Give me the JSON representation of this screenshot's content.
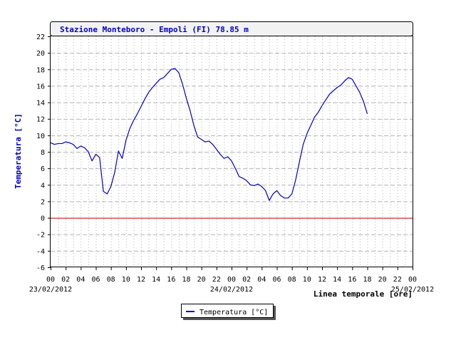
{
  "colors": {
    "series": "#0000cc",
    "zero_line": "#cc0000",
    "grid": "#b4b4b4",
    "axis_text": "#000000",
    "ylabel": "#0000cc",
    "title_bg": "#f2f2f2"
  },
  "chart_data": {
    "type": "line",
    "title": "Stazione Monteboro - Empoli (FI) 78.85 m",
    "ylabel": "Temperatura [°C]",
    "xlabel": "Linea temporale [ore]",
    "ylim": [
      -6,
      22
    ],
    "yticks": [
      -6,
      -4,
      -2,
      0,
      2,
      4,
      6,
      8,
      10,
      12,
      14,
      16,
      18,
      20,
      22
    ],
    "xlim_hours": [
      0,
      48
    ],
    "xtick_labels": [
      "00",
      "02",
      "04",
      "06",
      "08",
      "10",
      "12",
      "14",
      "16",
      "18",
      "20",
      "22",
      "00",
      "02",
      "04",
      "06",
      "08",
      "10",
      "12",
      "14",
      "16",
      "18",
      "20",
      "22",
      "00"
    ],
    "date_labels": [
      {
        "hour": 0,
        "label": "23/02/2012"
      },
      {
        "hour": 24,
        "label": "24/02/2012"
      },
      {
        "hour": 48,
        "label": "25/02/2012"
      }
    ],
    "grid": true,
    "legend": "bottom-center",
    "reference_line": {
      "y": 0
    },
    "series": [
      {
        "name": "Temperatura [°C]",
        "points": [
          [
            0.0,
            9.1
          ],
          [
            0.5,
            8.9
          ],
          [
            1.0,
            9.0
          ],
          [
            1.5,
            9.0
          ],
          [
            2.0,
            9.2
          ],
          [
            2.5,
            9.1
          ],
          [
            3.0,
            8.9
          ],
          [
            3.5,
            8.4
          ],
          [
            4.0,
            8.7
          ],
          [
            4.5,
            8.5
          ],
          [
            5.0,
            8.0
          ],
          [
            5.5,
            6.9
          ],
          [
            6.0,
            7.7
          ],
          [
            6.5,
            7.3
          ],
          [
            7.0,
            3.2
          ],
          [
            7.5,
            2.9
          ],
          [
            8.0,
            3.8
          ],
          [
            8.5,
            5.5
          ],
          [
            9.0,
            8.1
          ],
          [
            9.5,
            7.2
          ],
          [
            10.0,
            9.4
          ],
          [
            10.5,
            10.8
          ],
          [
            11.0,
            11.8
          ],
          [
            11.5,
            12.6
          ],
          [
            12.0,
            13.5
          ],
          [
            12.5,
            14.4
          ],
          [
            13.0,
            15.2
          ],
          [
            13.5,
            15.8
          ],
          [
            14.0,
            16.3
          ],
          [
            14.5,
            16.8
          ],
          [
            15.0,
            17.0
          ],
          [
            15.5,
            17.5
          ],
          [
            16.0,
            18.0
          ],
          [
            16.5,
            18.1
          ],
          [
            17.0,
            17.6
          ],
          [
            17.5,
            16.2
          ],
          [
            18.0,
            14.5
          ],
          [
            18.5,
            13.0
          ],
          [
            19.0,
            11.2
          ],
          [
            19.5,
            9.8
          ],
          [
            20.0,
            9.5
          ],
          [
            20.5,
            9.2
          ],
          [
            21.0,
            9.3
          ],
          [
            21.5,
            8.9
          ],
          [
            22.0,
            8.3
          ],
          [
            22.5,
            7.7
          ],
          [
            23.0,
            7.2
          ],
          [
            23.5,
            7.4
          ],
          [
            24.0,
            6.9
          ],
          [
            24.5,
            6.0
          ],
          [
            25.0,
            5.0
          ],
          [
            25.5,
            4.8
          ],
          [
            26.0,
            4.5
          ],
          [
            26.5,
            4.0
          ],
          [
            27.0,
            3.9
          ],
          [
            27.5,
            4.1
          ],
          [
            28.0,
            3.8
          ],
          [
            28.5,
            3.3
          ],
          [
            29.0,
            2.1
          ],
          [
            29.5,
            2.9
          ],
          [
            30.0,
            3.3
          ],
          [
            30.5,
            2.7
          ],
          [
            31.0,
            2.4
          ],
          [
            31.5,
            2.4
          ],
          [
            32.0,
            2.9
          ],
          [
            32.5,
            4.6
          ],
          [
            33.0,
            6.8
          ],
          [
            33.5,
            8.9
          ],
          [
            34.0,
            10.2
          ],
          [
            34.5,
            11.2
          ],
          [
            35.0,
            12.2
          ],
          [
            35.5,
            12.8
          ],
          [
            36.0,
            13.6
          ],
          [
            36.5,
            14.3
          ],
          [
            37.0,
            15.0
          ],
          [
            37.5,
            15.4
          ],
          [
            38.0,
            15.8
          ],
          [
            38.5,
            16.1
          ],
          [
            39.0,
            16.6
          ],
          [
            39.5,
            17.0
          ],
          [
            40.0,
            16.8
          ],
          [
            40.5,
            16.0
          ],
          [
            41.0,
            15.2
          ],
          [
            41.5,
            14.1
          ],
          [
            42.0,
            12.6
          ]
        ]
      }
    ]
  }
}
